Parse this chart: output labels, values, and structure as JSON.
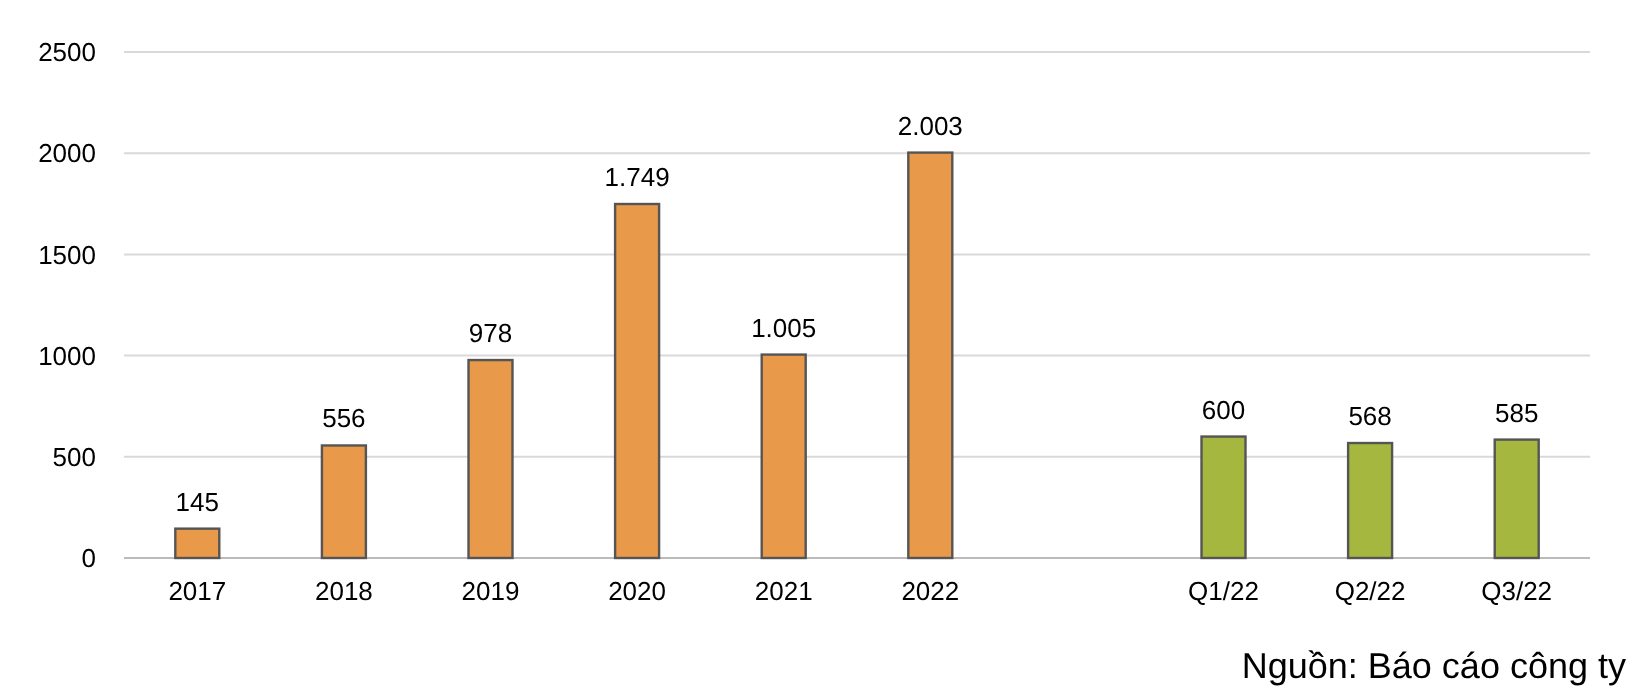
{
  "chart_data": {
    "type": "bar",
    "categories": [
      "2017",
      "2018",
      "2019",
      "2020",
      "2021",
      "2022",
      null,
      "Q1/22",
      "Q2/22",
      "Q3/22"
    ],
    "values": [
      145,
      556,
      978,
      1749,
      1005,
      2003,
      null,
      600,
      568,
      585
    ],
    "colors": [
      "#e8994a",
      "#e8994a",
      "#e8994a",
      "#e8994a",
      "#e8994a",
      "#e8994a",
      null,
      "#a5b73f",
      "#a5b73f",
      "#a5b73f"
    ],
    "value_labels": [
      "145",
      "556",
      "978",
      "1.749",
      "1.005",
      "2.003",
      null,
      "600",
      "568",
      "585"
    ],
    "ylim": [
      0,
      2500
    ],
    "yticks": [
      0,
      500,
      1000,
      1500,
      2000,
      2500
    ],
    "grid": "y",
    "annotations": [
      "Nguồn: Báo cáo công ty"
    ]
  }
}
